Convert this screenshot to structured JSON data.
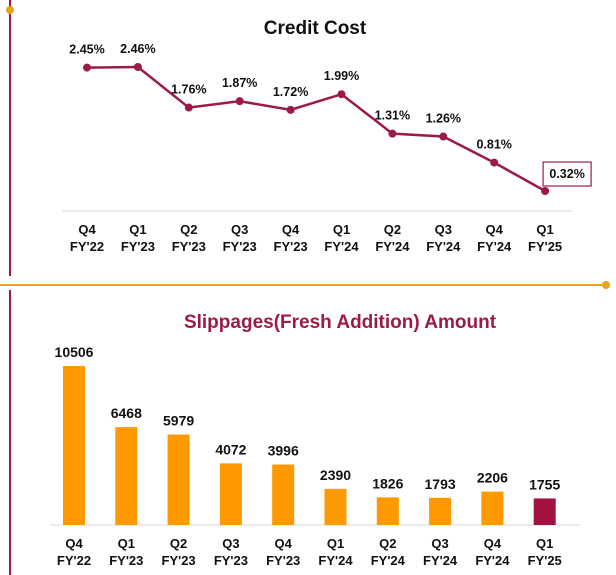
{
  "colors": {
    "line": "#9b1b45",
    "bar": "#ff9900",
    "highlight_bar": "#a3123f",
    "divider": "#e8a317"
  },
  "chart_data": [
    {
      "type": "line",
      "title": "Credit Cost",
      "categories": [
        "Q4\nFY'22",
        "Q1\nFY'23",
        "Q2\nFY'23",
        "Q3\nFY'23",
        "Q4\nFY'23",
        "Q1\nFY'24",
        "Q2\nFY'24",
        "Q3\nFY'24",
        "Q4\nFY'24",
        "Q1\nFY'25"
      ],
      "values": [
        2.45,
        2.46,
        1.76,
        1.87,
        1.72,
        1.99,
        1.31,
        1.26,
        0.81,
        0.32
      ],
      "labels": [
        "2.45%",
        "2.46%",
        "1.76%",
        "1.87%",
        "1.72%",
        "1.99%",
        "1.31%",
        "1.26%",
        "0.81%",
        "0.32%"
      ],
      "highlight_last": true,
      "grid": false
    },
    {
      "type": "bar",
      "title": "Slippages(Fresh Addition) Amount",
      "categories": [
        "Q4\nFY'22",
        "Q1\nFY'23",
        "Q2\nFY'23",
        "Q3\nFY'23",
        "Q4\nFY'23",
        "Q1\nFY'24",
        "Q2\nFY'24",
        "Q3\nFY'24",
        "Q4\nFY'24",
        "Q1\nFY'25"
      ],
      "values": [
        10506,
        6468,
        5979,
        4072,
        3996,
        2390,
        1826,
        1793,
        2206,
        1755
      ],
      "labels": [
        "10506",
        "6468",
        "5979",
        "4072",
        "3996",
        "2390",
        "1826",
        "1793",
        "2206",
        "1755"
      ],
      "highlight_last": true,
      "grid": false
    }
  ]
}
